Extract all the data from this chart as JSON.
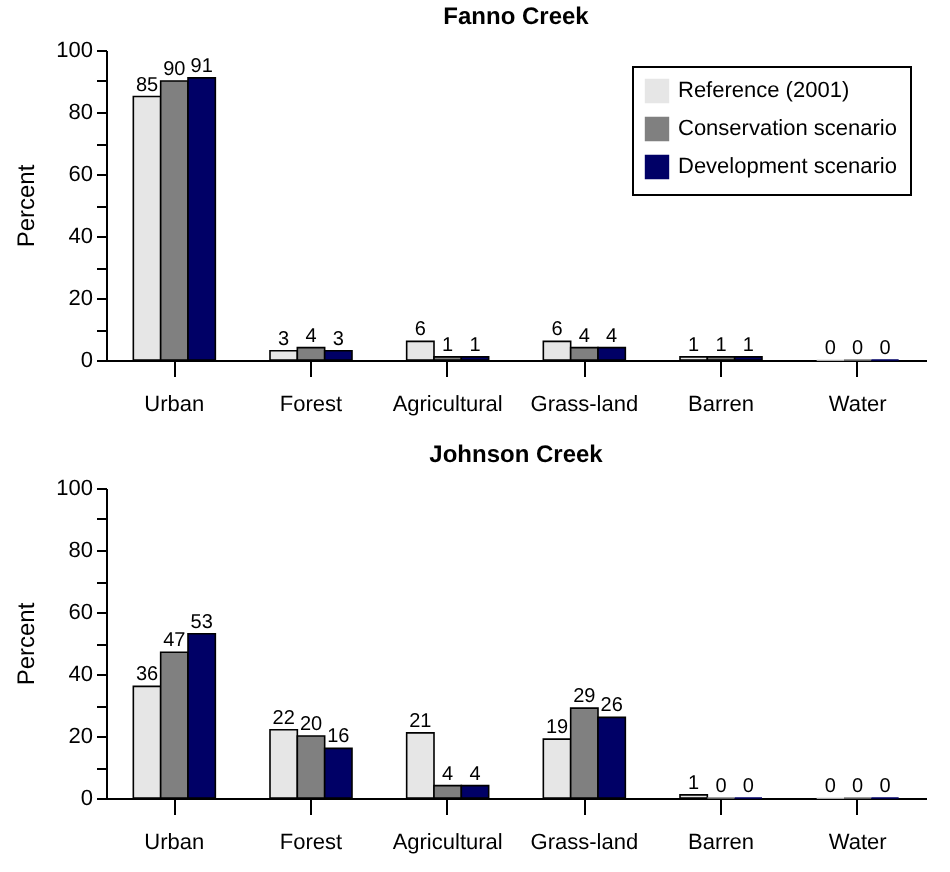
{
  "chart_data": [
    {
      "type": "bar",
      "title": "Fanno Creek",
      "ylabel": "Percent",
      "categories": [
        "Urban",
        "Forest",
        "Agricultural",
        "Grass-land",
        "Barren",
        "Water"
      ],
      "series": [
        {
          "name": "Reference (2001)",
          "color": "#e6e6e6",
          "values": [
            85,
            3,
            6,
            6,
            1,
            0
          ]
        },
        {
          "name": "Conservation scenario",
          "color": "#808080",
          "values": [
            90,
            4,
            1,
            4,
            1,
            0
          ]
        },
        {
          "name": "Development scenario",
          "color": "#000066",
          "values": [
            91,
            3,
            1,
            4,
            1,
            0
          ]
        }
      ],
      "ylim": [
        0,
        100
      ],
      "yticks": [
        0,
        {
          "value": 10,
          "label": null
        },
        20,
        {
          "value": 30,
          "label": null
        },
        40,
        {
          "value": 50,
          "label": null
        },
        60,
        {
          "value": 70,
          "label": null
        },
        80,
        {
          "value": 90,
          "label": null
        },
        100
      ],
      "data_labels": true,
      "legend": "top right"
    },
    {
      "type": "bar",
      "title": "Johnson Creek",
      "ylabel": "Percent",
      "categories": [
        "Urban",
        "Forest",
        "Agricultural",
        "Grass-land",
        "Barren",
        "Water"
      ],
      "series": [
        {
          "name": "Reference (2001)",
          "color": "#e6e6e6",
          "values": [
            36,
            22,
            21,
            19,
            1,
            0
          ]
        },
        {
          "name": "Conservation scenario",
          "color": "#808080",
          "values": [
            47,
            20,
            4,
            29,
            0,
            0
          ]
        },
        {
          "name": "Development scenario",
          "color": "#000066",
          "values": [
            53,
            16,
            4,
            26,
            0,
            0
          ]
        }
      ],
      "ylim": [
        0,
        100
      ],
      "yticks": [
        0,
        {
          "value": 10,
          "label": null
        },
        20,
        {
          "value": 30,
          "label": null
        },
        40,
        {
          "value": 50,
          "label": null
        },
        60,
        {
          "value": 70,
          "label": null
        },
        80,
        {
          "value": 90,
          "label": null
        },
        100
      ],
      "data_labels": true,
      "legend": "top right"
    }
  ]
}
